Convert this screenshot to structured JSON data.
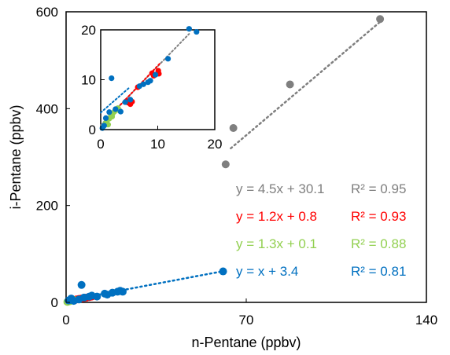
{
  "chart_data": [
    {
      "type": "scatter",
      "title": "",
      "xlabel": "n-Pentane  (ppbv)",
      "ylabel": "i-Pentane  (ppbv)",
      "xlim": [
        0,
        140
      ],
      "ylim": [
        0,
        600
      ],
      "x_ticks": [
        "0",
        "70",
        "140"
      ],
      "y_ticks": [
        "0",
        "200",
        "400",
        "600"
      ],
      "grid": false,
      "series": [
        {
          "color": "#7f7f7f",
          "points": [
            [
              62,
              285
            ],
            [
              65,
              360
            ],
            [
              87,
              450
            ],
            [
              122,
              585
            ]
          ],
          "fit": {
            "slope": 4.5,
            "intercept": 30.1,
            "x_range": [
              64,
              122
            ]
          },
          "equation": "y = 4.5x + 30.1",
          "r2": "R² = 0.95"
        },
        {
          "color": "#ff0000",
          "points": [
            [
              4,
              6
            ],
            [
              5,
              7
            ],
            [
              6,
              8
            ],
            [
              7,
              9
            ],
            [
              8,
              10
            ],
            [
              9,
              11
            ],
            [
              10,
              12
            ]
          ],
          "fit": {
            "slope": 1.2,
            "intercept": 0.8,
            "x_range": [
              3,
              10
            ]
          },
          "equation": "y = 1.2x + 0.8",
          "r2": "R² = 0.93"
        },
        {
          "color": "#92d050",
          "points": [
            [
              0.5,
              1
            ],
            [
              1,
              2
            ],
            [
              1.5,
              2.5
            ],
            [
              2,
              3.5
            ],
            [
              2.5,
              4
            ],
            [
              3,
              5
            ]
          ],
          "fit": {
            "slope": 1.3,
            "intercept": 0.1,
            "x_range": [
              0,
              3
            ]
          },
          "equation": "y = 1.3x + 0.1",
          "r2": "R² = 0.88"
        },
        {
          "color": "#0070c0",
          "points": [
            [
              1,
              4
            ],
            [
              2,
              8
            ],
            [
              3,
              3
            ],
            [
              5,
              6
            ],
            [
              6,
              36
            ],
            [
              7,
              10
            ],
            [
              9,
              12
            ],
            [
              10,
              14
            ],
            [
              12,
              12
            ],
            [
              15,
              18
            ],
            [
              16,
              16
            ],
            [
              18,
              20
            ],
            [
              20,
              22
            ],
            [
              21,
              24
            ],
            [
              22,
              22
            ],
            [
              61,
              64
            ]
          ],
          "fit": {
            "slope": 1.0,
            "intercept": 3.4,
            "x_range": [
              0,
              61
            ]
          },
          "equation": "y = x + 3.4",
          "r2": "R² = 0.81"
        }
      ]
    },
    {
      "type": "scatter",
      "title": "",
      "xlabel": "",
      "ylabel": "",
      "xlim": [
        0,
        20
      ],
      "ylim": [
        0,
        20
      ],
      "x_ticks": [
        "0",
        "10",
        "20"
      ],
      "y_ticks": [
        "0",
        "10",
        "20"
      ],
      "grid": false,
      "series": [
        {
          "color": "#7f7f7f",
          "fit": {
            "slope": 1.18,
            "intercept": 0.9,
            "x_range": [
              0,
              15.5
            ]
          }
        },
        {
          "color": "#ff0000",
          "points": [
            [
              4.5,
              5.7
            ],
            [
              4.8,
              5.4
            ],
            [
              5.2,
              5.1
            ],
            [
              5.5,
              5.6
            ],
            [
              6.5,
              8.5
            ],
            [
              9,
              11.3
            ],
            [
              9.3,
              10.8
            ],
            [
              10.1,
              11.8
            ],
            [
              10.2,
              11.2
            ]
          ],
          "fit": {
            "slope": 1.2,
            "intercept": 0.8,
            "x_range": [
              3,
              10.5
            ]
          }
        },
        {
          "color": "#92d050",
          "points": [
            [
              0.4,
              0.5
            ],
            [
              0.8,
              1.2
            ],
            [
              1.1,
              1.8
            ],
            [
              1.5,
              2.2
            ],
            [
              1.8,
              2.8
            ],
            [
              2.1,
              3.2
            ],
            [
              2.4,
              3.6
            ],
            [
              2.7,
              4.0
            ],
            [
              3.0,
              4.3
            ],
            [
              3.3,
              3.8
            ],
            [
              2.0,
              2.6
            ],
            [
              1.3,
              1.0
            ]
          ],
          "fit": {
            "slope": 1.3,
            "intercept": 0.1,
            "x_range": [
              0,
              3.5
            ]
          }
        },
        {
          "color": "#0070c0",
          "points": [
            [
              0.3,
              0.3
            ],
            [
              0.6,
              0.8
            ],
            [
              0.9,
              2.3
            ],
            [
              1.5,
              3.5
            ],
            [
              1.9,
              10.3
            ],
            [
              2.6,
              4.1
            ],
            [
              3.5,
              3.6
            ],
            [
              4.3,
              5.5
            ],
            [
              5.2,
              6.0
            ],
            [
              6.8,
              8.7
            ],
            [
              7.5,
              9.1
            ],
            [
              8.3,
              9.5
            ],
            [
              8.7,
              9.8
            ],
            [
              9.6,
              11.0
            ],
            [
              11.8,
              14.2
            ],
            [
              15.5,
              20.2
            ],
            [
              16.8,
              19.6
            ]
          ],
          "fit": {
            "slope": 1.0,
            "intercept": 3.4,
            "x_range": [
              0,
              5
            ]
          }
        }
      ]
    }
  ]
}
